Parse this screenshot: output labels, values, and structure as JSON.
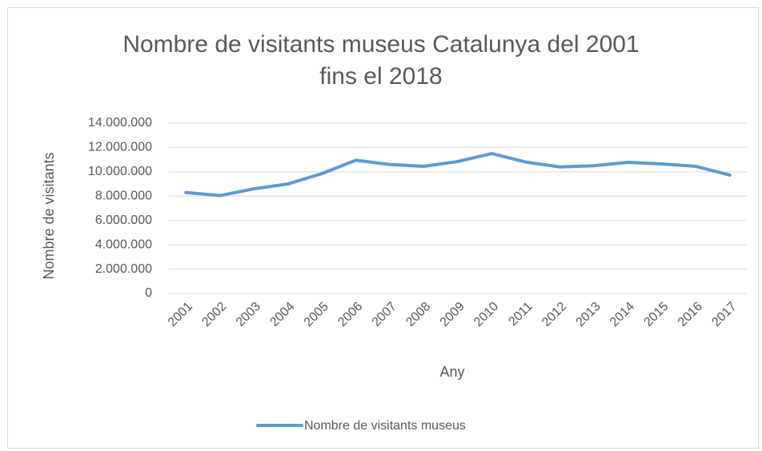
{
  "chart_data": {
    "type": "line",
    "title": "Nombre de visitants museus Catalunya del 2001 fins el 2018",
    "x_label": "Any",
    "y_label": "Nombre de visitants",
    "categories": [
      "2001",
      "2002",
      "2003",
      "2004",
      "2005",
      "2006",
      "2007",
      "2008",
      "2009",
      "2010",
      "2011",
      "2012",
      "2013",
      "2014",
      "2015",
      "2016",
      "2017"
    ],
    "series": [
      {
        "name": "Nombre de visitants museus",
        "color": "#5b9bd5",
        "values": [
          8300000,
          8050000,
          8600000,
          9000000,
          9850000,
          10950000,
          10600000,
          10450000,
          10850000,
          11500000,
          10800000,
          10400000,
          10500000,
          10780000,
          10650000,
          10450000,
          9730000
        ]
      }
    ],
    "ylim": [
      0,
      14000000
    ],
    "yticks": [
      0,
      {
        "value": 2000000,
        "label": "2.000.000"
      },
      {
        "value": 4000000,
        "label": "4.000.000"
      },
      {
        "value": 6000000,
        "label": "6.000.000"
      },
      {
        "value": 8000000,
        "label": "8.000.000"
      },
      {
        "value": 10000000,
        "label": "10.000.000"
      },
      {
        "value": 12000000,
        "label": "12.000.000"
      },
      {
        "value": 14000000,
        "label": "14.000.000"
      }
    ],
    "grid": true,
    "legend": "bottom"
  }
}
